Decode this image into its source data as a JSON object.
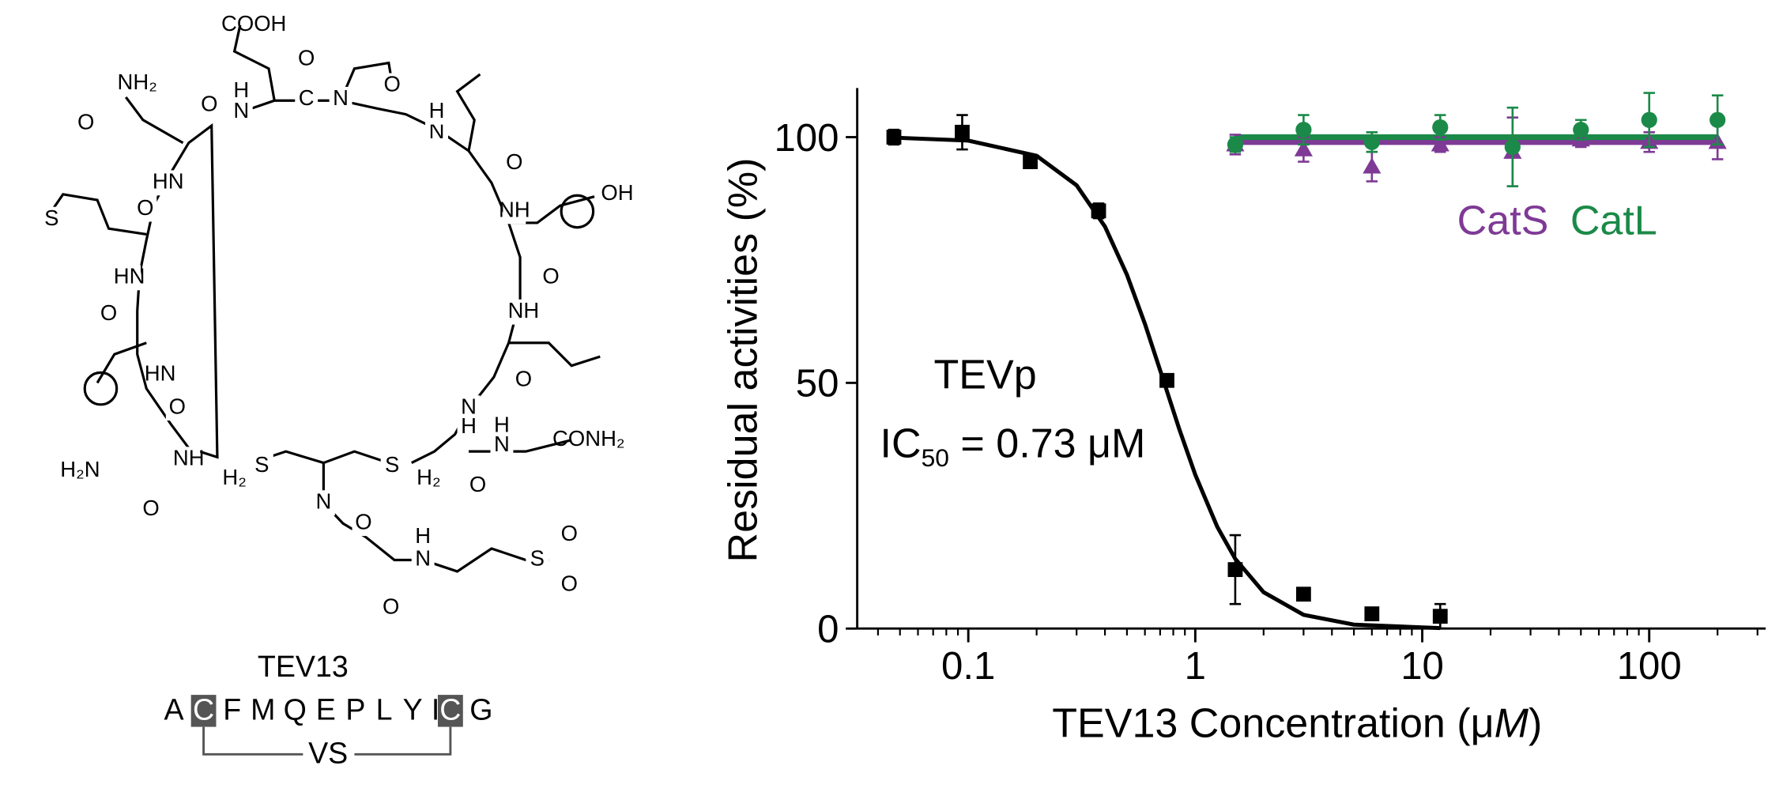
{
  "structure": {
    "atoms": [
      "COOH",
      "NH₂",
      "O",
      "O",
      "H",
      "N",
      "O",
      "C",
      "N",
      "O",
      "N",
      "H",
      "O",
      "NH",
      "OH",
      "O",
      "NH",
      "O",
      "N",
      "H",
      "O",
      "H",
      "N",
      "CONH₂",
      "HN",
      "O",
      "S",
      "HN",
      "O",
      "HN",
      "O",
      "H₂N",
      "NH",
      "O",
      "H₂",
      "S",
      "S",
      "H₂",
      "N",
      "O",
      "H",
      "N",
      "S",
      "O",
      "O",
      "O"
    ],
    "name": "TEV13",
    "sequence": [
      "A",
      "C",
      "F",
      "M",
      "Q",
      "E",
      "P",
      "L",
      "Y",
      "I",
      "C",
      "G"
    ],
    "linker": "VS"
  },
  "chart_data": {
    "type": "scatter",
    "xlabel_parts": [
      "TEV13 Concentration (μ",
      "M",
      ")"
    ],
    "ylabel": "Residual activities (%)",
    "annotations": {
      "tevp": "TEVp",
      "ic50": [
        "IC",
        "50",
        " = 0.73 μM"
      ]
    },
    "xscale": "log",
    "xlim": [
      0.0324,
      326
    ],
    "xticks": [
      0.1,
      1,
      10,
      100
    ],
    "xticks_minor": [
      0.04,
      0.05,
      0.06,
      0.07,
      0.08,
      0.09,
      0.2,
      0.3,
      0.4,
      0.5,
      0.6,
      0.7,
      0.8,
      0.9,
      2,
      3,
      4,
      5,
      6,
      7,
      8,
      9,
      20,
      30,
      40,
      50,
      60,
      70,
      80,
      90,
      200,
      300
    ],
    "ylim": [
      0,
      110
    ],
    "yticks": [
      0,
      50,
      100
    ],
    "series": [
      {
        "marker": "square",
        "color": "#000000",
        "x": [
          0.047,
          0.094,
          0.1875,
          0.375,
          0.75,
          1.5,
          3,
          6,
          12
        ],
        "values": [
          100,
          101,
          95,
          85,
          50.5,
          12,
          7,
          3,
          2.5
        ],
        "errors": [
          1.5,
          3.5,
          1,
          1.5,
          1,
          7,
          1,
          1,
          2.5
        ]
      },
      {
        "name": "CatS",
        "marker": "triangle",
        "color": "#7e3a95",
        "x": [
          1.5,
          3,
          6,
          12,
          25,
          50,
          100,
          200
        ],
        "values": [
          98.5,
          97.5,
          94,
          98.5,
          97,
          99.5,
          99,
          99
        ],
        "errors": [
          2,
          2.5,
          3,
          1.5,
          7,
          1.5,
          2,
          3.5
        ]
      },
      {
        "name": "CatL",
        "marker": "circle",
        "color": "#1b8a48",
        "x": [
          1.5,
          3,
          6,
          12,
          25,
          50,
          100,
          200
        ],
        "values": [
          98.5,
          101.5,
          99,
          102,
          98,
          101.5,
          103.5,
          103.5
        ],
        "errors": [
          1.5,
          3,
          2,
          2.5,
          8,
          2,
          5.5,
          5
        ]
      }
    ],
    "fits": [
      {
        "color": "#000000",
        "x": [
          0.047,
          0.1,
          0.2,
          0.3,
          0.4,
          0.5,
          0.6,
          0.73,
          0.85,
          1,
          1.25,
          1.5,
          2,
          3,
          5,
          12
        ],
        "values": [
          99.9,
          99.3,
          96.2,
          90.2,
          81.8,
          72.0,
          62.0,
          50,
          40.6,
          31.3,
          20.7,
          14.2,
          7.4,
          2.8,
          0.8,
          0.1
        ]
      },
      {
        "color": "#7e3a95",
        "x": [
          1.5,
          200
        ],
        "values": [
          99,
          99
        ]
      },
      {
        "color": "#1b8a48",
        "x": [
          1.5,
          200
        ],
        "values": [
          100,
          100
        ]
      }
    ]
  }
}
